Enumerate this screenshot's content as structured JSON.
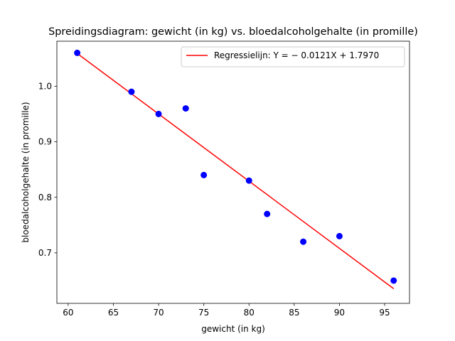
{
  "chart_data": {
    "type": "scatter",
    "title": "Spreidingsdiagram: gewicht (in kg) vs. bloedalcoholgehalte (in promille)",
    "xlabel": "gewicht (in kg)",
    "ylabel": "bloedalcoholgehalte (in promille)",
    "xlim": [
      58.75,
      97.75
    ],
    "ylim": [
      0.609,
      1.081
    ],
    "x_ticks": [
      60,
      65,
      70,
      75,
      80,
      85,
      90,
      95
    ],
    "y_ticks": [
      0.7,
      0.8,
      0.9,
      1.0
    ],
    "x_tick_labels": [
      "60",
      "65",
      "70",
      "75",
      "80",
      "85",
      "90",
      "95"
    ],
    "y_tick_labels": [
      "0.7",
      "0.8",
      "0.9",
      "1.0"
    ],
    "grid": false,
    "legend_position": "top-right",
    "series": [
      {
        "kind": "scatter",
        "color": "#0000ff",
        "marker": "circle",
        "points": [
          {
            "x": 61,
            "y": 1.06
          },
          {
            "x": 67,
            "y": 0.99
          },
          {
            "x": 70,
            "y": 0.95
          },
          {
            "x": 73,
            "y": 0.96
          },
          {
            "x": 75,
            "y": 0.84
          },
          {
            "x": 80,
            "y": 0.83
          },
          {
            "x": 82,
            "y": 0.77
          },
          {
            "x": 86,
            "y": 0.72
          },
          {
            "x": 90,
            "y": 0.73
          },
          {
            "x": 96,
            "y": 0.65
          }
        ]
      },
      {
        "kind": "line",
        "name": "Regressielijn: Y = − 0.0121X + 1.7970",
        "color": "#ff0000",
        "slope": -0.0121,
        "intercept": 1.797,
        "x_range": [
          61,
          96
        ]
      }
    ]
  }
}
